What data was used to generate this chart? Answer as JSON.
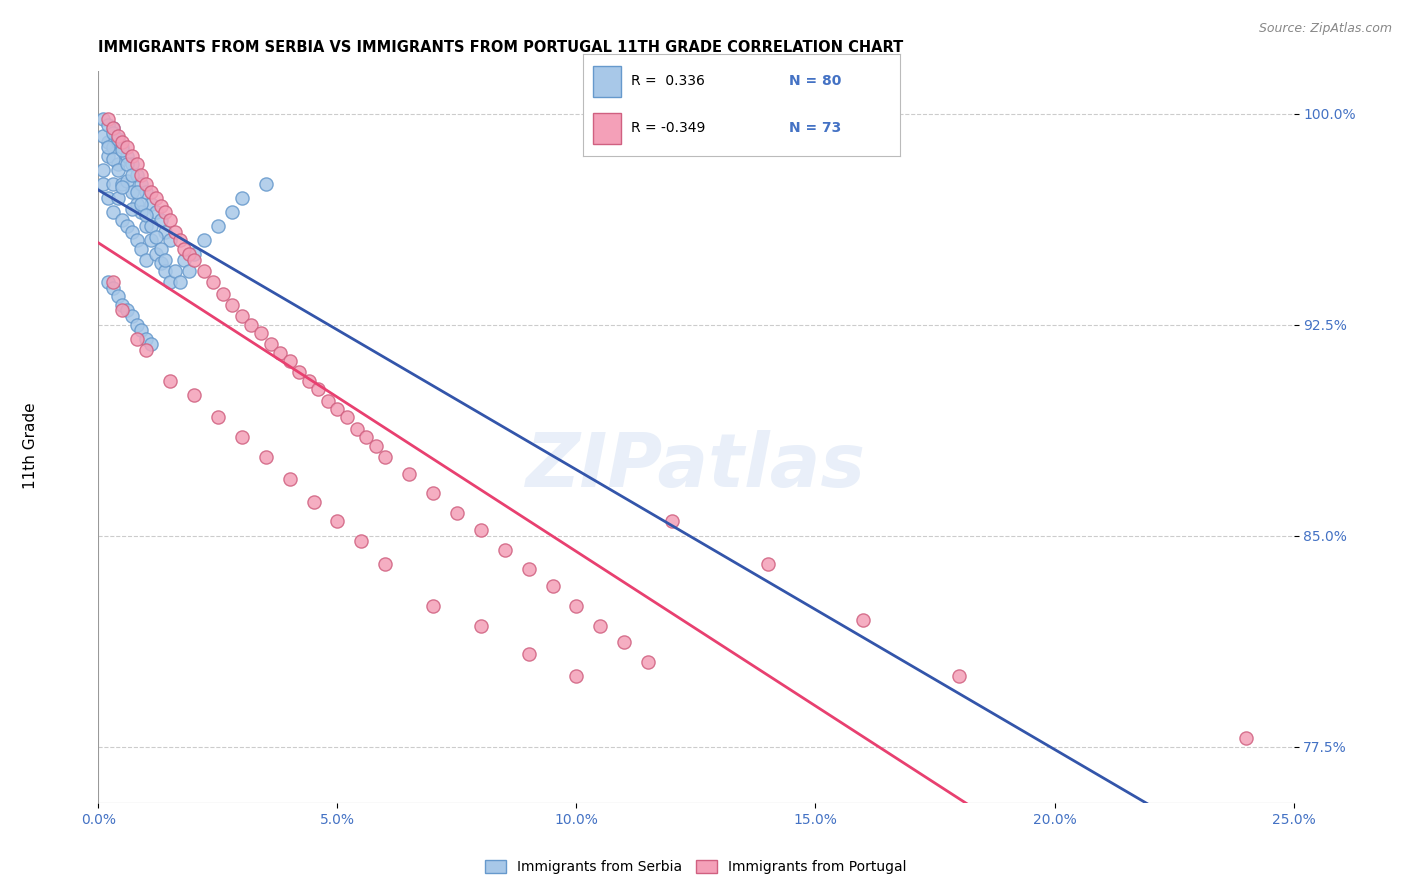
{
  "title": "IMMIGRANTS FROM SERBIA VS IMMIGRANTS FROM PORTUGAL 11TH GRADE CORRELATION CHART",
  "source": "Source: ZipAtlas.com",
  "ylabel": "11th Grade",
  "serbia_color": "#A8C8E8",
  "serbia_edge": "#6699CC",
  "portugal_color": "#F4A0B8",
  "portugal_edge": "#D06080",
  "serbia_line_color": "#3355AA",
  "portugal_line_color": "#E84070",
  "watermark": "ZIPatlas",
  "legend_R_serbia": "R =  0.336",
  "legend_N_serbia": "N = 80",
  "legend_R_portugal": "R = -0.349",
  "legend_N_portugal": "N = 73",
  "xlim": [
    0.0,
    0.25
  ],
  "ylim": [
    0.755,
    1.015
  ],
  "serbia_x": [
    0.001,
    0.001,
    0.002,
    0.002,
    0.002,
    0.003,
    0.003,
    0.003,
    0.003,
    0.004,
    0.004,
    0.004,
    0.005,
    0.005,
    0.005,
    0.006,
    0.006,
    0.006,
    0.007,
    0.007,
    0.007,
    0.008,
    0.008,
    0.008,
    0.009,
    0.009,
    0.009,
    0.01,
    0.01,
    0.01,
    0.011,
    0.011,
    0.012,
    0.012,
    0.013,
    0.013,
    0.014,
    0.014,
    0.015,
    0.015,
    0.001,
    0.001,
    0.002,
    0.002,
    0.003,
    0.003,
    0.004,
    0.004,
    0.005,
    0.005,
    0.006,
    0.007,
    0.007,
    0.008,
    0.009,
    0.01,
    0.011,
    0.012,
    0.013,
    0.014,
    0.002,
    0.003,
    0.004,
    0.005,
    0.006,
    0.007,
    0.008,
    0.009,
    0.01,
    0.011,
    0.016,
    0.017,
    0.018,
    0.019,
    0.02,
    0.022,
    0.025,
    0.028,
    0.03,
    0.035
  ],
  "serbia_y": [
    0.98,
    0.975,
    0.99,
    0.985,
    0.97,
    0.995,
    0.988,
    0.975,
    0.965,
    0.99,
    0.982,
    0.97,
    0.988,
    0.975,
    0.962,
    0.985,
    0.976,
    0.96,
    0.982,
    0.972,
    0.958,
    0.978,
    0.968,
    0.955,
    0.975,
    0.965,
    0.952,
    0.972,
    0.96,
    0.948,
    0.968,
    0.955,
    0.965,
    0.95,
    0.962,
    0.947,
    0.958,
    0.944,
    0.955,
    0.94,
    0.998,
    0.992,
    0.996,
    0.988,
    0.993,
    0.984,
    0.991,
    0.98,
    0.987,
    0.974,
    0.982,
    0.978,
    0.966,
    0.972,
    0.968,
    0.964,
    0.96,
    0.956,
    0.952,
    0.948,
    0.94,
    0.938,
    0.935,
    0.932,
    0.93,
    0.928,
    0.925,
    0.923,
    0.92,
    0.918,
    0.944,
    0.94,
    0.948,
    0.944,
    0.95,
    0.955,
    0.96,
    0.965,
    0.97,
    0.975
  ],
  "portugal_x": [
    0.002,
    0.003,
    0.004,
    0.005,
    0.006,
    0.007,
    0.008,
    0.009,
    0.01,
    0.011,
    0.012,
    0.013,
    0.014,
    0.015,
    0.016,
    0.017,
    0.018,
    0.019,
    0.02,
    0.022,
    0.024,
    0.026,
    0.028,
    0.03,
    0.032,
    0.034,
    0.036,
    0.038,
    0.04,
    0.042,
    0.044,
    0.046,
    0.048,
    0.05,
    0.052,
    0.054,
    0.056,
    0.058,
    0.06,
    0.065,
    0.07,
    0.075,
    0.08,
    0.085,
    0.09,
    0.095,
    0.1,
    0.105,
    0.11,
    0.115,
    0.003,
    0.005,
    0.008,
    0.01,
    0.015,
    0.02,
    0.025,
    0.03,
    0.035,
    0.04,
    0.045,
    0.05,
    0.055,
    0.06,
    0.07,
    0.08,
    0.09,
    0.1,
    0.12,
    0.14,
    0.16,
    0.18,
    0.24
  ],
  "portugal_y": [
    0.998,
    0.995,
    0.992,
    0.99,
    0.988,
    0.985,
    0.982,
    0.978,
    0.975,
    0.972,
    0.97,
    0.967,
    0.965,
    0.962,
    0.958,
    0.955,
    0.952,
    0.95,
    0.948,
    0.944,
    0.94,
    0.936,
    0.932,
    0.928,
    0.925,
    0.922,
    0.918,
    0.915,
    0.912,
    0.908,
    0.905,
    0.902,
    0.898,
    0.895,
    0.892,
    0.888,
    0.885,
    0.882,
    0.878,
    0.872,
    0.865,
    0.858,
    0.852,
    0.845,
    0.838,
    0.832,
    0.825,
    0.818,
    0.812,
    0.805,
    0.94,
    0.93,
    0.92,
    0.916,
    0.905,
    0.9,
    0.892,
    0.885,
    0.878,
    0.87,
    0.862,
    0.855,
    0.848,
    0.84,
    0.825,
    0.818,
    0.808,
    0.8,
    0.855,
    0.84,
    0.82,
    0.8,
    0.778
  ]
}
